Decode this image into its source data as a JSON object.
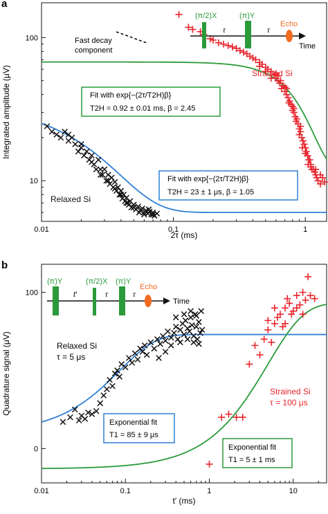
{
  "chart_data": [
    {
      "panel": "a",
      "type": "scatter",
      "xscale": "log",
      "yscale": "log",
      "xlim": [
        0.01,
        1.45
      ],
      "ylim": [
        5.2,
        175
      ],
      "xticks": [
        {
          "v": 0.01,
          "label": "0.01"
        },
        {
          "v": 0.1,
          "label": "0.1"
        },
        {
          "v": 1,
          "label": "1"
        }
      ],
      "yticks": [
        {
          "v": 10,
          "label": "10"
        },
        {
          "v": 100,
          "label": "100"
        }
      ],
      "xlabel": "2τ (ms)",
      "ylabel": "Integrated amplitude (μV)",
      "series": [
        {
          "name": "Strained Si",
          "marker": "plus",
          "color": "#e8242c",
          "points": [
            [
              0.11,
              145
            ],
            [
              0.13,
              118
            ],
            [
              0.14,
              114
            ],
            [
              0.16,
              110
            ],
            [
              0.17,
              105
            ],
            [
              0.19,
              98
            ],
            [
              0.2,
              96
            ],
            [
              0.22,
              92
            ],
            [
              0.24,
              90
            ],
            [
              0.26,
              88
            ],
            [
              0.28,
              86
            ],
            [
              0.3,
              84
            ],
            [
              0.32,
              81
            ],
            [
              0.34,
              79
            ],
            [
              0.36,
              77
            ],
            [
              0.38,
              74
            ],
            [
              0.4,
              72
            ],
            [
              0.42,
              70
            ],
            [
              0.45,
              67
            ],
            [
              0.47,
              65
            ],
            [
              0.5,
              62
            ],
            [
              0.52,
              60
            ],
            [
              0.55,
              58
            ],
            [
              0.58,
              55
            ],
            [
              0.6,
              52
            ],
            [
              0.62,
              50
            ],
            [
              0.64,
              48
            ],
            [
              0.66,
              44
            ],
            [
              0.68,
              46
            ],
            [
              0.7,
              42
            ],
            [
              0.72,
              40
            ],
            [
              0.74,
              38
            ],
            [
              0.76,
              36
            ],
            [
              0.78,
              34
            ],
            [
              0.8,
              33
            ],
            [
              0.82,
              30
            ],
            [
              0.84,
              28
            ],
            [
              0.86,
              27
            ],
            [
              0.88,
              25
            ],
            [
              0.9,
              23
            ],
            [
              0.92,
              22
            ],
            [
              0.94,
              20
            ],
            [
              0.96,
              19
            ],
            [
              0.98,
              18
            ],
            [
              1.0,
              17
            ],
            [
              1.02,
              16
            ],
            [
              1.04,
              15
            ],
            [
              1.06,
              14
            ],
            [
              1.08,
              14
            ],
            [
              1.1,
              13
            ],
            [
              1.12,
              12
            ],
            [
              1.15,
              12
            ],
            [
              1.18,
              11.5
            ],
            [
              1.2,
              11
            ],
            [
              1.22,
              10.5
            ],
            [
              1.25,
              10
            ],
            [
              1.3,
              9.5
            ],
            [
              1.35,
              10.5
            ],
            [
              1.4,
              9.8
            ],
            [
              0.55,
              52
            ],
            [
              0.6,
              56
            ],
            [
              0.65,
              50
            ],
            [
              0.7,
              45
            ],
            [
              0.75,
              35
            ],
            [
              0.8,
              31
            ],
            [
              0.85,
              26
            ],
            [
              0.9,
              21
            ],
            [
              0.95,
              17
            ],
            [
              1.0,
              15.5
            ],
            [
              1.05,
              13
            ],
            [
              1.1,
              12.5
            ],
            [
              1.2,
              12
            ],
            [
              1.3,
              11
            ],
            [
              0.5,
              58
            ],
            [
              0.45,
              63
            ],
            [
              0.62,
              54
            ],
            [
              0.72,
              44
            ],
            [
              0.82,
              32
            ],
            [
              0.92,
              24
            ]
          ]
        },
        {
          "name": "Relaxed Si",
          "marker": "cross",
          "color": "#111111",
          "points": [
            [
              0.011,
              24
            ],
            [
              0.012,
              22
            ],
            [
              0.013,
              21
            ],
            [
              0.014,
              20
            ],
            [
              0.015,
              22
            ],
            [
              0.016,
              19
            ],
            [
              0.017,
              20
            ],
            [
              0.018,
              18
            ],
            [
              0.019,
              16
            ],
            [
              0.02,
              17
            ],
            [
              0.021,
              15
            ],
            [
              0.022,
              16
            ],
            [
              0.023,
              14
            ],
            [
              0.024,
              15
            ],
            [
              0.025,
              13
            ],
            [
              0.026,
              12
            ],
            [
              0.027,
              14
            ],
            [
              0.028,
              12
            ],
            [
              0.029,
              11
            ],
            [
              0.03,
              12
            ],
            [
              0.031,
              10
            ],
            [
              0.032,
              11
            ],
            [
              0.033,
              9.5
            ],
            [
              0.034,
              10.5
            ],
            [
              0.035,
              9
            ],
            [
              0.036,
              9.8
            ],
            [
              0.037,
              8.5
            ],
            [
              0.038,
              9
            ],
            [
              0.039,
              8
            ],
            [
              0.04,
              8.5
            ],
            [
              0.041,
              7.5
            ],
            [
              0.042,
              8
            ],
            [
              0.043,
              7.2
            ],
            [
              0.044,
              7.6
            ],
            [
              0.045,
              7
            ],
            [
              0.046,
              6.8
            ],
            [
              0.047,
              7.2
            ],
            [
              0.048,
              6.5
            ],
            [
              0.05,
              6.8
            ],
            [
              0.052,
              6.3
            ],
            [
              0.054,
              6.6
            ],
            [
              0.056,
              6.2
            ],
            [
              0.058,
              6.4
            ],
            [
              0.06,
              6
            ],
            [
              0.062,
              6.2
            ],
            [
              0.064,
              5.9
            ],
            [
              0.066,
              6.1
            ],
            [
              0.068,
              5.8
            ],
            [
              0.07,
              6
            ],
            [
              0.072,
              5.7
            ],
            [
              0.075,
              5.9
            ],
            [
              0.016,
              21
            ],
            [
              0.02,
              18
            ],
            [
              0.024,
              13.5
            ],
            [
              0.028,
              11
            ],
            [
              0.032,
              10
            ],
            [
              0.036,
              8.8
            ],
            [
              0.04,
              8
            ],
            [
              0.044,
              7
            ],
            [
              0.05,
              6.5
            ],
            [
              0.055,
              6
            ],
            [
              0.06,
              5.8
            ],
            [
              0.065,
              6.3
            ],
            [
              0.07,
              5.8
            ]
          ]
        }
      ],
      "fits": [
        {
          "label": "Strained Si fit",
          "color": "#2a9a3a",
          "A": 56,
          "T": 0.92,
          "beta": 2.45,
          "offset": 11.5
        },
        {
          "label": "Relaxed Si fit",
          "color": "#2f7fd6",
          "A": 29,
          "T": 0.023,
          "beta": 1.05,
          "offset": 6
        }
      ],
      "annotations": {
        "fast_decay_label": [
          "Fast decay",
          "component"
        ],
        "strained_label": "Strained Si",
        "relaxed_label": "Relaxed Si",
        "box1_line1": "Fit with exp{−(2τ/T2H)β}",
        "box1_line2": "T2H = 0.92 ± 0.01 ms, β = 2.45",
        "box2_line1": "Fit with exp{−(2τ/T2H)β}",
        "box2_line2": "T2H = 23 ± 1 μs, β = 1.05"
      },
      "pulse_sequence": {
        "p1": "(π/2)X",
        "p2": "(π)Y",
        "tau": "τ",
        "echo": "Echo",
        "time": "Time"
      }
    },
    {
      "panel": "b",
      "type": "scatter",
      "xscale": "log",
      "yscale": "linear",
      "xlim": [
        0.01,
        25
      ],
      "ylim": [
        -22,
        118
      ],
      "xticks": [
        {
          "v": 0.01,
          "label": "0.01"
        },
        {
          "v": 0.1,
          "label": "0.1"
        },
        {
          "v": 1,
          "label": "1"
        },
        {
          "v": 10,
          "label": "10"
        }
      ],
      "yticks": [
        {
          "v": 0,
          "label": "0"
        },
        {
          "v": 100,
          "label": "100"
        }
      ],
      "xlabel": "t′ (ms)",
      "ylabel": "Quadrature signal (μV)",
      "series": [
        {
          "name": "Relaxed Si",
          "marker": "cross",
          "color": "#111111",
          "points": [
            [
              0.018,
              17
            ],
            [
              0.022,
              20
            ],
            [
              0.025,
              25
            ],
            [
              0.028,
              18
            ],
            [
              0.03,
              21
            ],
            [
              0.033,
              19
            ],
            [
              0.036,
              23
            ],
            [
              0.04,
              22
            ],
            [
              0.045,
              24
            ],
            [
              0.05,
              29
            ],
            [
              0.055,
              34
            ],
            [
              0.06,
              38
            ],
            [
              0.065,
              44
            ],
            [
              0.07,
              40
            ],
            [
              0.075,
              48
            ],
            [
              0.08,
              50
            ],
            [
              0.085,
              46
            ],
            [
              0.09,
              54
            ],
            [
              0.1,
              52
            ],
            [
              0.11,
              58
            ],
            [
              0.12,
              55
            ],
            [
              0.13,
              61
            ],
            [
              0.14,
              57
            ],
            [
              0.15,
              64
            ],
            [
              0.16,
              62
            ],
            [
              0.17,
              66
            ],
            [
              0.18,
              60
            ],
            [
              0.2,
              68
            ],
            [
              0.22,
              64
            ],
            [
              0.24,
              70
            ],
            [
              0.26,
              67
            ],
            [
              0.28,
              72
            ],
            [
              0.3,
              69
            ],
            [
              0.32,
              75
            ],
            [
              0.35,
              71
            ],
            [
              0.38,
              74
            ],
            [
              0.4,
              78
            ],
            [
              0.42,
              70
            ],
            [
              0.45,
              76
            ],
            [
              0.48,
              80
            ],
            [
              0.5,
              73
            ],
            [
              0.52,
              82
            ],
            [
              0.55,
              77
            ],
            [
              0.58,
              75
            ],
            [
              0.6,
              84
            ],
            [
              0.62,
              79
            ],
            [
              0.65,
              72
            ],
            [
              0.68,
              86
            ],
            [
              0.7,
              78
            ],
            [
              0.72,
              70
            ],
            [
              0.75,
              81
            ],
            [
              0.78,
              74
            ],
            [
              0.8,
              88
            ],
            [
              0.82,
              76
            ],
            [
              0.25,
              58
            ],
            [
              0.3,
              62
            ],
            [
              0.35,
              66
            ],
            [
              0.45,
              68
            ],
            [
              0.55,
              70
            ],
            [
              0.65,
              68
            ],
            [
              0.75,
              67
            ],
            [
              0.4,
              84
            ],
            [
              0.5,
              86
            ],
            [
              0.6,
              88
            ],
            [
              0.7,
              85
            ]
          ]
        },
        {
          "name": "Strained Si",
          "marker": "plus",
          "color": "#e8242c",
          "points": [
            [
              1.0,
              -10
            ],
            [
              1.4,
              20
            ],
            [
              1.7,
              22
            ],
            [
              2.1,
              20
            ],
            [
              2.5,
              20
            ],
            [
              3.0,
              54
            ],
            [
              3.5,
              66
            ],
            [
              4.0,
              60
            ],
            [
              4.5,
              70
            ],
            [
              5.0,
              76
            ],
            [
              5.5,
              68
            ],
            [
              6.0,
              80
            ],
            [
              6.5,
              84
            ],
            [
              7.0,
              86
            ],
            [
              7.5,
              78
            ],
            [
              8.0,
              90
            ],
            [
              8.5,
              96
            ],
            [
              9.0,
              93
            ],
            [
              10.0,
              88
            ],
            [
              11.0,
              98
            ],
            [
              12.0,
              92
            ],
            [
              13.0,
              100
            ],
            [
              14.0,
              95
            ],
            [
              15.0,
              110
            ],
            [
              16.0,
              98
            ],
            [
              18.0,
              96
            ],
            [
              5.0,
              82
            ],
            [
              6.0,
              90
            ],
            [
              8.0,
              80
            ],
            [
              9.5,
              86
            ],
            [
              11.0,
              90
            ],
            [
              13.0,
              86
            ]
          ]
        }
      ],
      "fits": [
        {
          "label": "Relaxed Si fit",
          "color": "#2f7fd6",
          "yinf": 73,
          "y0": 10,
          "T": 0.085
        },
        {
          "label": "Strained Si fit",
          "color": "#2a9a3a",
          "yinf": 93,
          "y0": -13,
          "T": 5
        }
      ],
      "annotations": {
        "relaxed_label": [
          "Relaxed Si",
          "τ = 5 μs"
        ],
        "strained_label": [
          "Strained Si",
          "τ = 100 μs"
        ],
        "box1_line1": "Exponential fit",
        "box1_line2": "T1 = 85 ± 9 μs",
        "box2_line1": "Exponential fit",
        "box2_line2": "T1 = 5 ± 1 ms"
      },
      "pulse_sequence": {
        "p1": "(π)Y",
        "p2": "(π/2)X",
        "p3": "(π)Y",
        "tprime": "t′",
        "tau": "τ",
        "echo": "Echo",
        "time": "Time"
      }
    }
  ],
  "panel_labels": {
    "a": "a",
    "b": "b"
  },
  "colors": {
    "red": "#e8242c",
    "green": "#2a9a3a",
    "blue": "#2f7fd6",
    "black": "#111111",
    "echo": "#f26a22"
  }
}
